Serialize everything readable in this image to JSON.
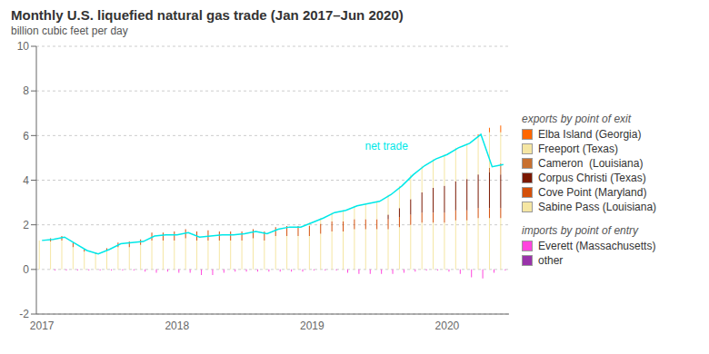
{
  "chart_data": {
    "type": "bar",
    "title": "Monthly U.S. liquefied natural gas trade (Jan 2017–Jun 2020)",
    "subtitle": "billion cubic feet per day",
    "categories": [
      "2017",
      null,
      null,
      null,
      null,
      null,
      null,
      null,
      null,
      null,
      null,
      null,
      "2018",
      null,
      null,
      null,
      null,
      null,
      null,
      null,
      null,
      null,
      null,
      null,
      "2019",
      null,
      null,
      null,
      null,
      null,
      null,
      null,
      null,
      null,
      null,
      null,
      "2020",
      null,
      null,
      null,
      null,
      null
    ],
    "stacked": true,
    "grid": true,
    "legend": "right",
    "ylim": [
      -2,
      10
    ],
    "yticks": [
      -2,
      0,
      2,
      4,
      6,
      8,
      10
    ],
    "series": [
      {
        "name": "Sabine Pass (Louisiana)",
        "color": "#f5e6a3",
        "values": [
          1.3,
          1.25,
          1.3,
          1.0,
          0.8,
          0.7,
          0.85,
          1.0,
          1.0,
          1.1,
          1.3,
          1.3,
          1.3,
          1.4,
          1.3,
          1.3,
          1.3,
          1.3,
          1.3,
          1.4,
          1.3,
          1.5,
          1.5,
          1.5,
          1.5,
          1.6,
          1.7,
          1.7,
          1.8,
          1.8,
          1.8,
          1.8,
          1.9,
          2.0,
          2.1,
          2.1,
          2.1,
          2.2,
          2.2,
          2.3,
          2.3,
          2.3
        ]
      },
      {
        "name": "Cove Point (Maryland)",
        "color": "#d4500a",
        "values": [
          0.0,
          0.15,
          0.2,
          0.2,
          0.1,
          0.05,
          0.1,
          0.2,
          0.25,
          0.25,
          0.35,
          0.35,
          0.4,
          0.4,
          0.4,
          0.45,
          0.4,
          0.4,
          0.4,
          0.4,
          0.4,
          0.4,
          0.45,
          0.45,
          0.45,
          0.45,
          0.45,
          0.45,
          0.45,
          0.45,
          0.45,
          0.45,
          0.45,
          0.45,
          0.45,
          0.45,
          0.45,
          0.45,
          0.45,
          0.45,
          0.45,
          0.45
        ]
      },
      {
        "name": "Corpus Christi (Texas)",
        "color": "#7a1800",
        "values": [
          0.0,
          0.0,
          0.0,
          0.0,
          0.0,
          0.0,
          0.0,
          0.0,
          0.0,
          0.0,
          0.0,
          0.0,
          0.0,
          0.0,
          0.0,
          0.0,
          0.0,
          0.0,
          0.0,
          0.0,
          0.0,
          0.0,
          0.0,
          0.0,
          0.0,
          0.0,
          0.0,
          0.0,
          0.0,
          0.0,
          0.0,
          0.2,
          0.4,
          0.7,
          0.9,
          1.1,
          1.2,
          1.3,
          1.4,
          1.5,
          1.6,
          1.5
        ]
      },
      {
        "name": "Cameron  (Louisiana)",
        "color": "#c87030",
        "values": [
          0.0,
          0.0,
          0.0,
          0.0,
          0.0,
          0.0,
          0.0,
          0.0,
          0.0,
          0.0,
          0.0,
          0.0,
          0.0,
          0.0,
          0.0,
          0.0,
          0.0,
          0.0,
          0.0,
          0.0,
          0.0,
          0.0,
          0.0,
          0.0,
          0.0,
          0.0,
          0.0,
          0.0,
          0.0,
          0.0,
          0.0,
          0.0,
          0.0,
          0.0,
          0.0,
          0.0,
          0.0,
          0.0,
          0.0,
          0.0,
          0.2,
          0.5
        ]
      },
      {
        "name": "Freeport (Texas)",
        "color": "#f5e6a3",
        "values": [
          0.0,
          0.0,
          0.0,
          0.0,
          0.0,
          0.0,
          0.0,
          0.0,
          0.0,
          0.0,
          0.0,
          0.0,
          0.0,
          0.0,
          0.0,
          0.0,
          0.0,
          0.0,
          0.0,
          0.0,
          0.0,
          0.0,
          0.0,
          0.0,
          0.15,
          0.25,
          0.4,
          0.5,
          0.6,
          0.7,
          0.8,
          0.9,
          1.0,
          1.1,
          1.2,
          1.3,
          1.4,
          1.5,
          1.6,
          1.7,
          1.6,
          1.4
        ]
      },
      {
        "name": "Elba Island (Georgia)",
        "color": "#ff6600",
        "values": [
          0.0,
          0.0,
          0.0,
          0.0,
          0.0,
          0.0,
          0.0,
          0.0,
          0.0,
          0.0,
          0.0,
          0.0,
          0.0,
          0.0,
          0.0,
          0.0,
          0.0,
          0.0,
          0.0,
          0.0,
          0.0,
          0.0,
          0.0,
          0.0,
          0.0,
          0.0,
          0.0,
          0.0,
          0.0,
          0.0,
          0.0,
          0.0,
          0.0,
          0.0,
          0.0,
          0.0,
          0.0,
          0.0,
          0.0,
          0.1,
          0.2,
          0.3
        ]
      },
      {
        "name": "Everett (Massachusetts)",
        "color": "#ff44dd",
        "values": [
          0.0,
          -0.05,
          -0.05,
          -0.05,
          -0.05,
          -0.05,
          -0.05,
          -0.05,
          -0.05,
          -0.1,
          -0.15,
          -0.1,
          -0.15,
          -0.15,
          -0.25,
          -0.25,
          -0.15,
          -0.1,
          -0.1,
          -0.1,
          -0.1,
          -0.1,
          -0.1,
          -0.1,
          -0.05,
          -0.05,
          -0.05,
          -0.15,
          -0.2,
          -0.2,
          -0.2,
          -0.2,
          -0.15,
          -0.1,
          -0.05,
          -0.05,
          -0.1,
          -0.2,
          -0.35,
          -0.4,
          -0.15,
          -0.05
        ]
      },
      {
        "name": "other",
        "color": "#9933aa",
        "values": [
          0.0,
          0.0,
          0.0,
          0.0,
          0.0,
          0.0,
          0.0,
          0.0,
          0.0,
          0.0,
          0.0,
          0.0,
          0.0,
          0.0,
          0.0,
          0.0,
          0.0,
          0.0,
          0.0,
          0.0,
          0.0,
          0.0,
          0.0,
          0.0,
          0.0,
          0.0,
          0.0,
          0.0,
          0.0,
          0.0,
          0.0,
          0.0,
          0.0,
          0.0,
          0.0,
          0.0,
          0.0,
          0.0,
          0.0,
          0.0,
          0.0,
          0.0
        ]
      },
      {
        "name": "net trade",
        "type": "line",
        "color": "#00e8e8",
        "values": [
          1.3,
          1.35,
          1.45,
          1.15,
          0.85,
          0.7,
          0.9,
          1.15,
          1.2,
          1.25,
          1.5,
          1.55,
          1.55,
          1.65,
          1.45,
          1.5,
          1.55,
          1.55,
          1.6,
          1.7,
          1.6,
          1.8,
          1.9,
          1.9,
          2.1,
          2.3,
          2.55,
          2.65,
          2.85,
          2.95,
          3.05,
          3.35,
          3.75,
          4.25,
          4.65,
          4.95,
          5.15,
          5.45,
          5.65,
          6.05,
          4.6,
          4.7
        ]
      }
    ],
    "annotations": [
      {
        "text": "net trade",
        "x": 28.5,
        "y": 5.25
      },
      {
        "text": "exports by point of exit"
      },
      {
        "text": "imports by point of entry"
      }
    ]
  }
}
